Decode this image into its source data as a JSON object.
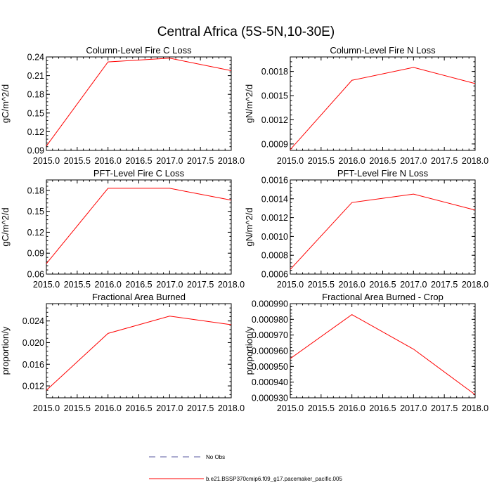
{
  "title": "Central Africa (5S-5N,10-30E)",
  "legend": {
    "placement": "bottom-center",
    "entries": [
      {
        "label": "No Obs",
        "color": "#5a5aa0",
        "dashed": true
      },
      {
        "label": "b.e21.BSSP370cmip6.f09_g17.pacemaker_pacific.005",
        "color": "#ff0000",
        "dashed": false
      }
    ]
  },
  "chart_data": [
    {
      "type": "line",
      "title": "Column-Level Fire C Loss",
      "ylabel": "gC/m^2/d",
      "xlim": [
        2015,
        2018
      ],
      "ylim": [
        0.09,
        0.24
      ],
      "xticks": [
        "2015.0",
        "2015.5",
        "2016.0",
        "2016.5",
        "2017.0",
        "2017.5",
        "2018.0"
      ],
      "yticks": [
        "0.09",
        "0.12",
        "0.15",
        "0.18",
        "0.21",
        "0.24"
      ],
      "series": [
        {
          "name": "b.e21.BSSP370cmip6.f09_g17.pacemaker_pacific.005",
          "color": "#ff0000",
          "x": [
            2015,
            2016,
            2017,
            2018
          ],
          "y": [
            0.097,
            0.232,
            0.238,
            0.218
          ]
        }
      ]
    },
    {
      "type": "line",
      "title": "Column-Level Fire N Loss",
      "ylabel": "gN/m^2/d",
      "xlim": [
        2015,
        2018
      ],
      "ylim": [
        0.00082,
        0.00198
      ],
      "xticks": [
        "2015.0",
        "2015.5",
        "2016.0",
        "2016.5",
        "2017.0",
        "2017.5",
        "2018.0"
      ],
      "yticks": [
        "0.0009",
        "0.0012",
        "0.0015",
        "0.0018"
      ],
      "series": [
        {
          "name": "b.e21.BSSP370cmip6.f09_g17.pacemaker_pacific.005",
          "color": "#ff0000",
          "x": [
            2015,
            2016,
            2017,
            2018
          ],
          "y": [
            0.00083,
            0.00169,
            0.00185,
            0.00165
          ]
        }
      ]
    },
    {
      "type": "line",
      "title": "PFT-Level Fire C Loss",
      "ylabel": "gC/m^2/d",
      "xlim": [
        2015,
        2018
      ],
      "ylim": [
        0.06,
        0.195
      ],
      "xticks": [
        "2015.0",
        "2015.5",
        "2016.0",
        "2016.5",
        "2017.0",
        "2017.5",
        "2018.0"
      ],
      "yticks": [
        "0.06",
        "0.09",
        "0.12",
        "0.15",
        "0.18"
      ],
      "series": [
        {
          "name": "b.e21.BSSP370cmip6.f09_g17.pacemaker_pacific.005",
          "color": "#ff0000",
          "x": [
            2015,
            2016,
            2017,
            2018
          ],
          "y": [
            0.075,
            0.183,
            0.183,
            0.166
          ]
        }
      ]
    },
    {
      "type": "line",
      "title": "PFT-Level Fire N Loss",
      "ylabel": "gN/m^2/d",
      "xlim": [
        2015,
        2018
      ],
      "ylim": [
        0.0006,
        0.0016
      ],
      "xticks": [
        "2015.0",
        "2015.5",
        "2016.0",
        "2016.5",
        "2017.0",
        "2017.5",
        "2018.0"
      ],
      "yticks": [
        "0.0006",
        "0.0008",
        "0.0010",
        "0.0012",
        "0.0014",
        "0.0016"
      ],
      "series": [
        {
          "name": "b.e21.BSSP370cmip6.f09_g17.pacemaker_pacific.005",
          "color": "#ff0000",
          "x": [
            2015,
            2016,
            2017,
            2018
          ],
          "y": [
            0.00065,
            0.00136,
            0.00145,
            0.00128
          ]
        }
      ]
    },
    {
      "type": "line",
      "title": "Fractional Area Burned",
      "ylabel": "proportion/y",
      "xlim": [
        2015,
        2018
      ],
      "ylim": [
        0.0098,
        0.0272
      ],
      "xticks": [
        "2015.0",
        "2015.5",
        "2016.0",
        "2016.5",
        "2017.0",
        "2017.5",
        "2018.0"
      ],
      "yticks": [
        "0.012",
        "0.016",
        "0.020",
        "0.024"
      ],
      "series": [
        {
          "name": "b.e21.BSSP370cmip6.f09_g17.pacemaker_pacific.005",
          "color": "#ff0000",
          "x": [
            2015,
            2016,
            2017,
            2018
          ],
          "y": [
            0.0112,
            0.0217,
            0.0249,
            0.0233
          ]
        }
      ]
    },
    {
      "type": "line",
      "title": "Fractional Area Burned - Crop",
      "ylabel": "proportion/y",
      "xlim": [
        2015,
        2018
      ],
      "ylim": [
        0.00093,
        0.00099
      ],
      "xticks": [
        "2015.0",
        "2015.5",
        "2016.0",
        "2016.5",
        "2017.0",
        "2017.5",
        "2018.0"
      ],
      "yticks": [
        "0.000930",
        "0.000940",
        "0.000950",
        "0.000960",
        "0.000970",
        "0.000980",
        "0.000990"
      ],
      "series": [
        {
          "name": "b.e21.BSSP370cmip6.f09_g17.pacemaker_pacific.005",
          "color": "#ff0000",
          "x": [
            2015,
            2016,
            2017,
            2018
          ],
          "y": [
            0.000955,
            0.000983,
            0.000961,
            0.000932
          ]
        }
      ]
    }
  ]
}
